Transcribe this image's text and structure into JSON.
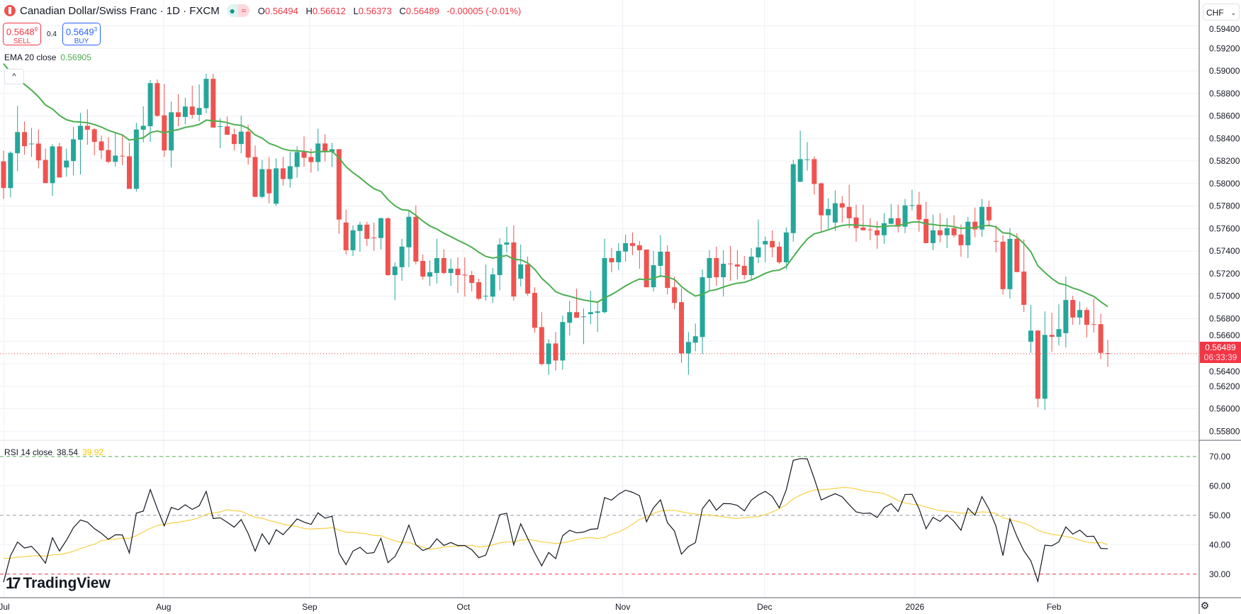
{
  "header": {
    "title": "Canadian Dollar/Swiss Franc · 1D · FXCM",
    "status_dot": "●",
    "status_wave": "≈",
    "ohlc": [
      {
        "k": "O",
        "v": "0.56494"
      },
      {
        "k": "H",
        "v": "0.56612"
      },
      {
        "k": "L",
        "v": "0.56373"
      },
      {
        "k": "C",
        "v": "0.56489"
      }
    ],
    "change": "-0.00005 (-0.01%)"
  },
  "trade": {
    "sell_price": "0.5648",
    "sell_sup": "9",
    "sell_label": "SELL",
    "spread": "0.4",
    "buy_price": "0.5649",
    "buy_sup": "3",
    "buy_label": "BUY"
  },
  "ema_legend": {
    "label": "EMA 20 close",
    "value": "0.56905"
  },
  "rsi_legend": {
    "label": "RSI 14 close",
    "value": "38.54",
    "ma_value": "39.92"
  },
  "currency_button": {
    "label": "CHF",
    "chevron": "⌄"
  },
  "collapse_icon": "^",
  "last_price": {
    "price": "0.56489",
    "countdown": "06:33:39"
  },
  "brand": {
    "mark": "17",
    "name": "TradingView"
  },
  "settings_icon": "⚙",
  "colors": {
    "up": "#26a69a",
    "down": "#ef5350",
    "ema": "#4caf50",
    "rsi": "#131722",
    "rsi_ma": "#f7d046",
    "grid": "#edf0f5",
    "upper_band": "#4caf50",
    "lower_band": "#f23645",
    "mid_band": "#9598a1"
  },
  "chart_data": {
    "type": "candlestick",
    "symbol": "CADCHF",
    "interval": "1D",
    "price_axis_labels": [
      "0.59400",
      "0.59200",
      "0.59000",
      "0.58800",
      "0.58600",
      "0.58400",
      "0.58200",
      "0.58000",
      "0.57800",
      "0.57600",
      "0.57400",
      "0.57200",
      "0.57000",
      "0.56800",
      "0.56600",
      "0.56400",
      "0.56200",
      "0.56000",
      "0.55800"
    ],
    "price_range": [
      0.5572,
      0.5963
    ],
    "time_labels": [
      {
        "label": "Jul",
        "bar": 0.1
      },
      {
        "label": "Aug",
        "bar": 22.9
      },
      {
        "label": "Sep",
        "bar": 43.8
      },
      {
        "label": "Oct",
        "bar": 65.8
      },
      {
        "label": "Nov",
        "bar": 88.6
      },
      {
        "label": "Dec",
        "bar": 108.9
      },
      {
        "label": "2026",
        "bar": 130.4
      },
      {
        "label": "Feb",
        "bar": 150.3
      }
    ],
    "ema": {
      "period": 20,
      "seed": 0.5918
    },
    "rsi": {
      "period": 14,
      "ma_period": 14,
      "seed_avg_gain": 0.0005,
      "seed_avg_loss": 0.00115,
      "seed_ma": 36,
      "axis_labels": [
        "70.00",
        "60.00",
        "50.00",
        "40.00",
        "30.00"
      ],
      "upper": 70,
      "middle": 50,
      "lower": 30,
      "range": [
        22,
        75.5
      ]
    },
    "ohlc": [
      [
        0.58197,
        0.58292,
        0.57865,
        0.5796
      ],
      [
        0.5796,
        0.58286,
        0.57877,
        0.58273
      ],
      [
        0.58269,
        0.5869,
        0.58109,
        0.58457
      ],
      [
        0.58457,
        0.58551,
        0.58256,
        0.58332
      ],
      [
        0.58352,
        0.58494,
        0.58237,
        0.58355
      ],
      [
        0.58355,
        0.5848,
        0.58134,
        0.58206
      ],
      [
        0.5821,
        0.58311,
        0.58004,
        0.58004
      ],
      [
        0.58004,
        0.58349,
        0.5789,
        0.5833
      ],
      [
        0.5833,
        0.58362,
        0.58054,
        0.58054
      ],
      [
        0.58143,
        0.58311,
        0.58061,
        0.58204
      ],
      [
        0.582,
        0.58501,
        0.58073,
        0.58393
      ],
      [
        0.58389,
        0.58627,
        0.5808,
        0.58513
      ],
      [
        0.58513,
        0.58659,
        0.58345,
        0.58478
      ],
      [
        0.58482,
        0.58492,
        0.5825,
        0.5837
      ],
      [
        0.58374,
        0.58425,
        0.58219,
        0.58294
      ],
      [
        0.58298,
        0.58412,
        0.58181,
        0.58193
      ],
      [
        0.58193,
        0.5845,
        0.58151,
        0.58248
      ],
      [
        0.58247,
        0.58438,
        0.58162,
        0.58245
      ],
      [
        0.58242,
        0.58362,
        0.57953,
        0.57953
      ],
      [
        0.57953,
        0.58539,
        0.57928,
        0.5848
      ],
      [
        0.58478,
        0.58686,
        0.58366,
        0.58513
      ],
      [
        0.58509,
        0.58918,
        0.5837,
        0.58892
      ],
      [
        0.58892,
        0.58924,
        0.58591,
        0.58602
      ],
      [
        0.58606,
        0.58886,
        0.58237,
        0.58294
      ],
      [
        0.58294,
        0.58728,
        0.58143,
        0.58633
      ],
      [
        0.58633,
        0.58793,
        0.58509,
        0.58591
      ],
      [
        0.58591,
        0.5876,
        0.58528,
        0.58684
      ],
      [
        0.58684,
        0.58869,
        0.58577,
        0.5861
      ],
      [
        0.5861,
        0.5888,
        0.58553,
        0.58671
      ],
      [
        0.58669,
        0.58975,
        0.58625,
        0.5893
      ],
      [
        0.5893,
        0.58975,
        0.58497,
        0.58497
      ],
      [
        0.58507,
        0.58581,
        0.58313,
        0.58509
      ],
      [
        0.58507,
        0.58596,
        0.58433,
        0.58433
      ],
      [
        0.58438,
        0.58488,
        0.58292,
        0.58351
      ],
      [
        0.58351,
        0.58602,
        0.58269,
        0.58461
      ],
      [
        0.58461,
        0.5852,
        0.58168,
        0.58231
      ],
      [
        0.58236,
        0.58337,
        0.57882,
        0.57882
      ],
      [
        0.57882,
        0.5821,
        0.57869,
        0.58128
      ],
      [
        0.58128,
        0.58236,
        0.57825,
        0.57913
      ],
      [
        0.57821,
        0.58223,
        0.57802,
        0.58135
      ],
      [
        0.58135,
        0.58236,
        0.57983,
        0.5804
      ],
      [
        0.5804,
        0.5828,
        0.57964,
        0.58154
      ],
      [
        0.58147,
        0.5833,
        0.58052,
        0.5828
      ],
      [
        0.5828,
        0.58419,
        0.58147,
        0.58229
      ],
      [
        0.58236,
        0.58311,
        0.58097,
        0.58191
      ],
      [
        0.58191,
        0.58488,
        0.58109,
        0.58356
      ],
      [
        0.58356,
        0.58438,
        0.58198,
        0.5828
      ],
      [
        0.5828,
        0.58362,
        0.58147,
        0.58305
      ],
      [
        0.58305,
        0.58305,
        0.57553,
        0.5768
      ],
      [
        0.57654,
        0.57768,
        0.5737,
        0.57408
      ],
      [
        0.57408,
        0.57629,
        0.57357,
        0.57585
      ],
      [
        0.57579,
        0.57661,
        0.57395,
        0.57635
      ],
      [
        0.57635,
        0.57661,
        0.57446,
        0.57509
      ],
      [
        0.5752,
        0.57654,
        0.57402,
        0.57518
      ],
      [
        0.57516,
        0.57699,
        0.57414,
        0.57692
      ],
      [
        0.57692,
        0.57699,
        0.57181,
        0.57187
      ],
      [
        0.57187,
        0.57301,
        0.56964,
        0.57263
      ],
      [
        0.57257,
        0.57509,
        0.57136,
        0.5744
      ],
      [
        0.57434,
        0.57762,
        0.57257,
        0.57705
      ],
      [
        0.57705,
        0.57806,
        0.57282,
        0.57307
      ],
      [
        0.57313,
        0.5737,
        0.57149,
        0.57174
      ],
      [
        0.57174,
        0.5732,
        0.57092,
        0.57212
      ],
      [
        0.57206,
        0.57509,
        0.57111,
        0.57338
      ],
      [
        0.57338,
        0.57414,
        0.57193,
        0.57206
      ],
      [
        0.57206,
        0.57332,
        0.57092,
        0.57244
      ],
      [
        0.57244,
        0.57345,
        0.57029,
        0.57187
      ],
      [
        0.57191,
        0.57345,
        0.56997,
        0.57187
      ],
      [
        0.57187,
        0.57225,
        0.57042,
        0.57117
      ],
      [
        0.57124,
        0.57155,
        0.56966,
        0.56978
      ],
      [
        0.56999,
        0.57282,
        0.56959,
        0.57003
      ],
      [
        0.56996,
        0.5725,
        0.5694,
        0.57193
      ],
      [
        0.57187,
        0.57515,
        0.57054,
        0.57459
      ],
      [
        0.57458,
        0.57616,
        0.57389,
        0.57477
      ],
      [
        0.57477,
        0.57629,
        0.56959,
        0.56997
      ],
      [
        0.57155,
        0.57459,
        0.57086,
        0.57282
      ],
      [
        0.57282,
        0.57351,
        0.57004,
        0.57023
      ],
      [
        0.57029,
        0.57079,
        0.56675,
        0.56719
      ],
      [
        0.56725,
        0.56858,
        0.56384,
        0.56397
      ],
      [
        0.56397,
        0.56618,
        0.56302,
        0.5658
      ],
      [
        0.5658,
        0.56681,
        0.5634,
        0.56429
      ],
      [
        0.56429,
        0.56827,
        0.56346,
        0.5677
      ],
      [
        0.56764,
        0.56959,
        0.5665,
        0.56858
      ],
      [
        0.56858,
        0.57067,
        0.56808,
        0.56808
      ],
      [
        0.56818,
        0.5689,
        0.56574,
        0.5682
      ],
      [
        0.5684,
        0.57048,
        0.56751,
        0.56858
      ],
      [
        0.56852,
        0.56947,
        0.56681,
        0.56865
      ],
      [
        0.56858,
        0.57509,
        0.56846,
        0.57338
      ],
      [
        0.57338,
        0.57427,
        0.57212,
        0.57301
      ],
      [
        0.57301,
        0.57471,
        0.57231,
        0.57402
      ],
      [
        0.57396,
        0.57547,
        0.57307,
        0.57471
      ],
      [
        0.57471,
        0.57566,
        0.57364,
        0.57446
      ],
      [
        0.57452,
        0.5749,
        0.57244,
        0.57408
      ],
      [
        0.57414,
        0.57414,
        0.57079,
        0.57079
      ],
      [
        0.57079,
        0.57402,
        0.57042,
        0.57275
      ],
      [
        0.57269,
        0.57541,
        0.57168,
        0.57395
      ],
      [
        0.57395,
        0.57452,
        0.57016,
        0.57073
      ],
      [
        0.57079,
        0.57174,
        0.56884,
        0.5694
      ],
      [
        0.56947,
        0.57067,
        0.5641,
        0.56492
      ],
      [
        0.56492,
        0.56681,
        0.56302,
        0.56593
      ],
      [
        0.56587,
        0.56757,
        0.56511,
        0.56644
      ],
      [
        0.56637,
        0.57237,
        0.56486,
        0.57168
      ],
      [
        0.57162,
        0.57408,
        0.57048,
        0.57338
      ],
      [
        0.57338,
        0.5744,
        0.57092,
        0.57168
      ],
      [
        0.57168,
        0.57408,
        0.56997,
        0.57288
      ],
      [
        0.5729,
        0.57446,
        0.57136,
        0.57286
      ],
      [
        0.57282,
        0.57408,
        0.57149,
        0.57263
      ],
      [
        0.57269,
        0.57357,
        0.57149,
        0.57187
      ],
      [
        0.57187,
        0.57427,
        0.57149,
        0.57351
      ],
      [
        0.57345,
        0.5768,
        0.57294,
        0.57433
      ],
      [
        0.57459,
        0.57528,
        0.57301,
        0.5749
      ],
      [
        0.5749,
        0.57585,
        0.57345,
        0.57433
      ],
      [
        0.5744,
        0.57484,
        0.57288,
        0.57301
      ],
      [
        0.57301,
        0.5761,
        0.57237,
        0.57566
      ],
      [
        0.5756,
        0.5821,
        0.57484,
        0.58172
      ],
      [
        0.58015,
        0.58469,
        0.58015,
        0.58217
      ],
      [
        0.58213,
        0.58368,
        0.58116,
        0.58215
      ],
      [
        0.58217,
        0.58242,
        0.57901,
        0.57996
      ],
      [
        0.58002,
        0.58008,
        0.57572,
        0.57718
      ],
      [
        0.57718,
        0.57869,
        0.57598,
        0.57774
      ],
      [
        0.57654,
        0.57939,
        0.57579,
        0.57825
      ],
      [
        0.57825,
        0.57888,
        0.57654,
        0.57787
      ],
      [
        0.57793,
        0.57989,
        0.57604,
        0.57692
      ],
      [
        0.57699,
        0.57812,
        0.57484,
        0.57604
      ],
      [
        0.5761,
        0.57812,
        0.57585,
        0.57585
      ],
      [
        0.57592,
        0.57692,
        0.57497,
        0.5759
      ],
      [
        0.57585,
        0.57667,
        0.57421,
        0.57541
      ],
      [
        0.57541,
        0.57737,
        0.57465,
        0.57648
      ],
      [
        0.57642,
        0.57819,
        0.57642,
        0.57692
      ],
      [
        0.57692,
        0.57812,
        0.57566,
        0.57617
      ],
      [
        0.57617,
        0.57863,
        0.5756,
        0.57806
      ],
      [
        0.57804,
        0.57945,
        0.57762,
        0.57808
      ],
      [
        0.57812,
        0.57926,
        0.57572,
        0.5768
      ],
      [
        0.57686,
        0.57838,
        0.57471,
        0.57471
      ],
      [
        0.57471,
        0.57724,
        0.57408,
        0.57585
      ],
      [
        0.57585,
        0.57737,
        0.57478,
        0.57541
      ],
      [
        0.57541,
        0.57692,
        0.57427,
        0.57604
      ],
      [
        0.57604,
        0.57718,
        0.57522,
        0.57541
      ],
      [
        0.57547,
        0.57636,
        0.57351,
        0.57452
      ],
      [
        0.57452,
        0.57705,
        0.57338,
        0.57661
      ],
      [
        0.57661,
        0.57787,
        0.57522,
        0.57592
      ],
      [
        0.57592,
        0.57863,
        0.57528,
        0.57793
      ],
      [
        0.57793,
        0.5785,
        0.57617,
        0.57673
      ],
      [
        0.5749,
        0.57629,
        0.57389,
        0.57488
      ],
      [
        0.57484,
        0.57541,
        0.57012,
        0.57062
      ],
      [
        0.57062,
        0.57604,
        0.5698,
        0.57509
      ],
      [
        0.57509,
        0.57559,
        0.57214,
        0.57214
      ],
      [
        0.57218,
        0.57503,
        0.5686,
        0.56923
      ],
      [
        0.56595,
        0.56921,
        0.56496,
        0.56694
      ],
      [
        0.56694,
        0.567,
        0.56014,
        0.56089
      ],
      [
        0.56089,
        0.56864,
        0.55988,
        0.56656
      ],
      [
        0.56656,
        0.56852,
        0.56506,
        0.56639
      ],
      [
        0.56639,
        0.56928,
        0.56563,
        0.56707
      ],
      [
        0.56671,
        0.57174,
        0.56544,
        0.56966
      ],
      [
        0.56966,
        0.57004,
        0.56746,
        0.5681
      ],
      [
        0.5681,
        0.56953,
        0.56746,
        0.56877
      ],
      [
        0.56877,
        0.56902,
        0.56633,
        0.56746
      ],
      [
        0.56751,
        0.56978,
        0.56677,
        0.56749
      ],
      [
        0.56751,
        0.56845,
        0.56443,
        0.56496
      ],
      [
        0.56494,
        0.56612,
        0.56373,
        0.56489
      ]
    ]
  }
}
